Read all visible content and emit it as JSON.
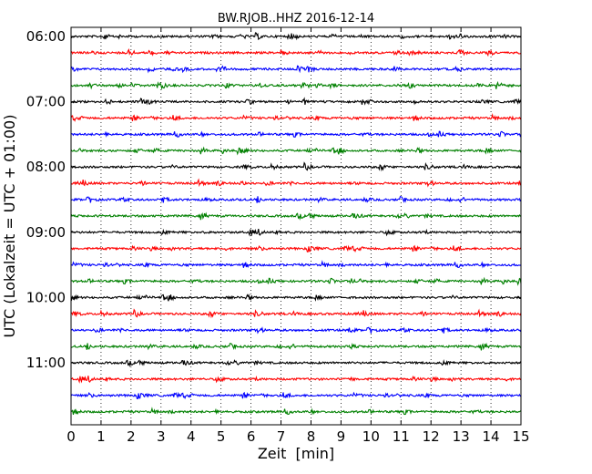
{
  "chart_data": {
    "type": "line",
    "title": "BW.RJOB..HHZ 2016-12-14",
    "xlabel": "Zeit  [min]",
    "ylabel": "UTC (Lokalzeit = UTC + 01:00)",
    "xlim": [
      0,
      15
    ],
    "xticks": [
      "0",
      "1",
      "2",
      "3",
      "4",
      "5",
      "6",
      "7",
      "8",
      "9",
      "10",
      "11",
      "12",
      "13",
      "14",
      "15"
    ],
    "grid": "vertical dotted",
    "trace_interval_min": 15,
    "trace_count": 24,
    "trace_colors": [
      "#000000",
      "#ff0000",
      "#0000ff",
      "#008000"
    ],
    "hour_labels": [
      {
        "label": "06:00",
        "trace_index": 0
      },
      {
        "label": "07:00",
        "trace_index": 4
      },
      {
        "label": "08:00",
        "trace_index": 8
      },
      {
        "label": "09:00",
        "trace_index": 12
      },
      {
        "label": "10:00",
        "trace_index": 16
      },
      {
        "label": "11:00",
        "trace_index": 20
      }
    ]
  }
}
